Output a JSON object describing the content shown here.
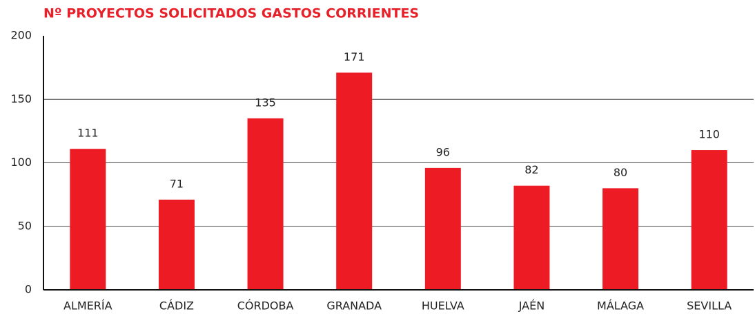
{
  "chart_data": {
    "type": "bar",
    "title": "Nº PROYECTOS SOLICITADOS GASTOS CORRIENTES",
    "categories": [
      "ALMERÍA",
      "CÁDIZ",
      "CÓRDOBA",
      "GRANADA",
      "HUELVA",
      "JAÉN",
      "MÁLAGA",
      "SEVILLA"
    ],
    "values": [
      111,
      71,
      135,
      171,
      96,
      82,
      80,
      110
    ],
    "color": "#ed1c24",
    "ylim": [
      0,
      200
    ],
    "yticks": [
      0,
      50,
      100,
      150,
      200
    ],
    "grid": true
  }
}
